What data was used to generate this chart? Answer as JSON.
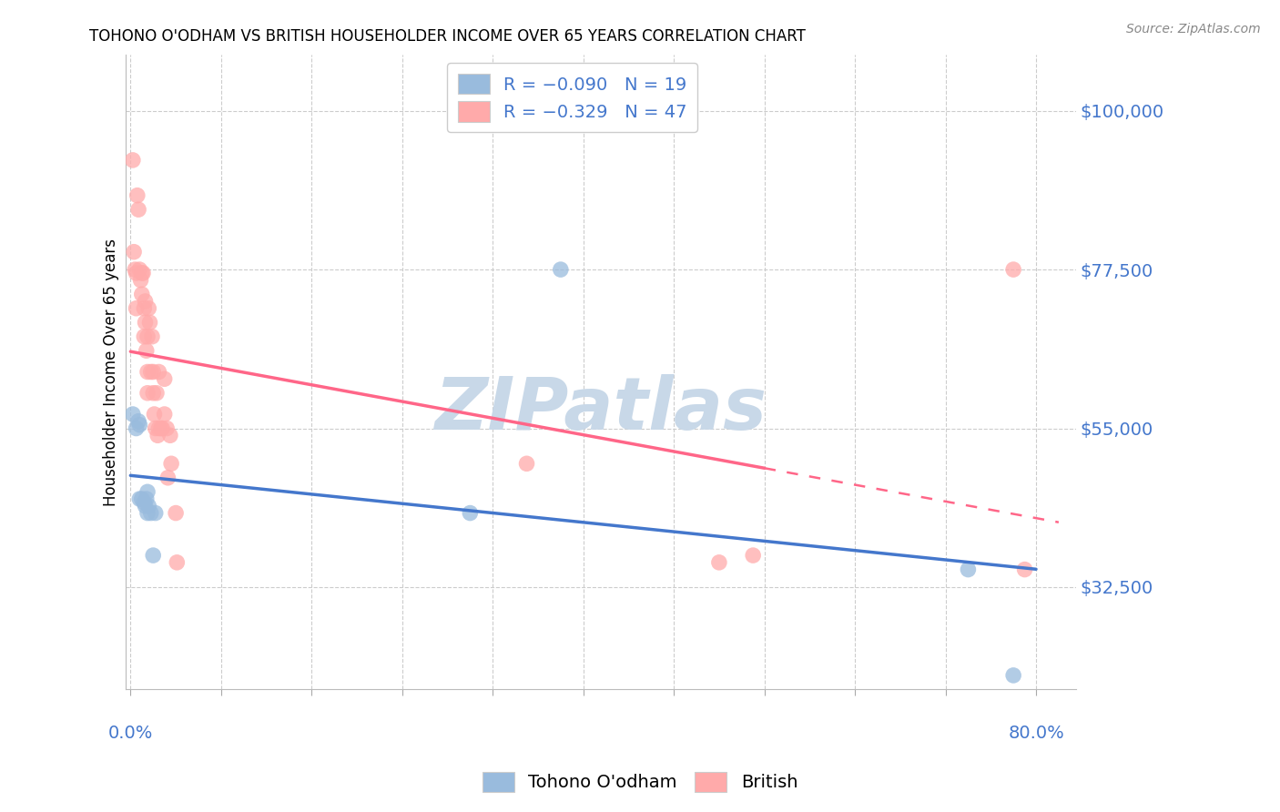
{
  "title": "TOHONO O'ODHAM VS BRITISH HOUSEHOLDER INCOME OVER 65 YEARS CORRELATION CHART",
  "source": "Source: ZipAtlas.com",
  "ylabel": "Householder Income Over 65 years",
  "ytick_labels": [
    "$32,500",
    "$55,000",
    "$77,500",
    "$100,000"
  ],
  "ytick_values": [
    32500,
    55000,
    77500,
    100000
  ],
  "ymin": 18000,
  "ymax": 108000,
  "xmin": -0.004,
  "xmax": 0.835,
  "color_blue": "#99BBDD",
  "color_pink": "#FFAAAA",
  "color_blue_line": "#4477CC",
  "color_pink_line": "#FF6688",
  "color_blue_text": "#4477CC",
  "color_watermark": "#C8D8E8",
  "tohono_x": [
    0.002,
    0.005,
    0.007,
    0.008,
    0.008,
    0.01,
    0.012,
    0.013,
    0.014,
    0.015,
    0.015,
    0.016,
    0.018,
    0.02,
    0.022,
    0.3,
    0.38,
    0.74,
    0.78
  ],
  "tohono_y": [
    57000,
    55000,
    56000,
    55500,
    45000,
    45000,
    44500,
    44000,
    45000,
    46000,
    43000,
    44000,
    43000,
    37000,
    43000,
    43000,
    77500,
    35000,
    20000
  ],
  "british_x": [
    0.002,
    0.003,
    0.004,
    0.005,
    0.005,
    0.006,
    0.007,
    0.008,
    0.009,
    0.01,
    0.01,
    0.011,
    0.012,
    0.012,
    0.013,
    0.013,
    0.014,
    0.015,
    0.015,
    0.015,
    0.016,
    0.017,
    0.018,
    0.019,
    0.02,
    0.02,
    0.021,
    0.022,
    0.023,
    0.024,
    0.025,
    0.025,
    0.027,
    0.028,
    0.03,
    0.03,
    0.032,
    0.033,
    0.035,
    0.036,
    0.04,
    0.041,
    0.35,
    0.52,
    0.55,
    0.78,
    0.79
  ],
  "british_y": [
    93000,
    80000,
    77500,
    77000,
    72000,
    88000,
    86000,
    77500,
    76000,
    77000,
    74000,
    77000,
    72000,
    68000,
    73000,
    70000,
    66000,
    68000,
    63000,
    60000,
    72000,
    70000,
    63000,
    68000,
    63000,
    60000,
    57000,
    55000,
    60000,
    54000,
    63000,
    55000,
    55000,
    55000,
    62000,
    57000,
    55000,
    48000,
    54000,
    50000,
    43000,
    36000,
    50000,
    36000,
    37000,
    77500,
    35000
  ]
}
